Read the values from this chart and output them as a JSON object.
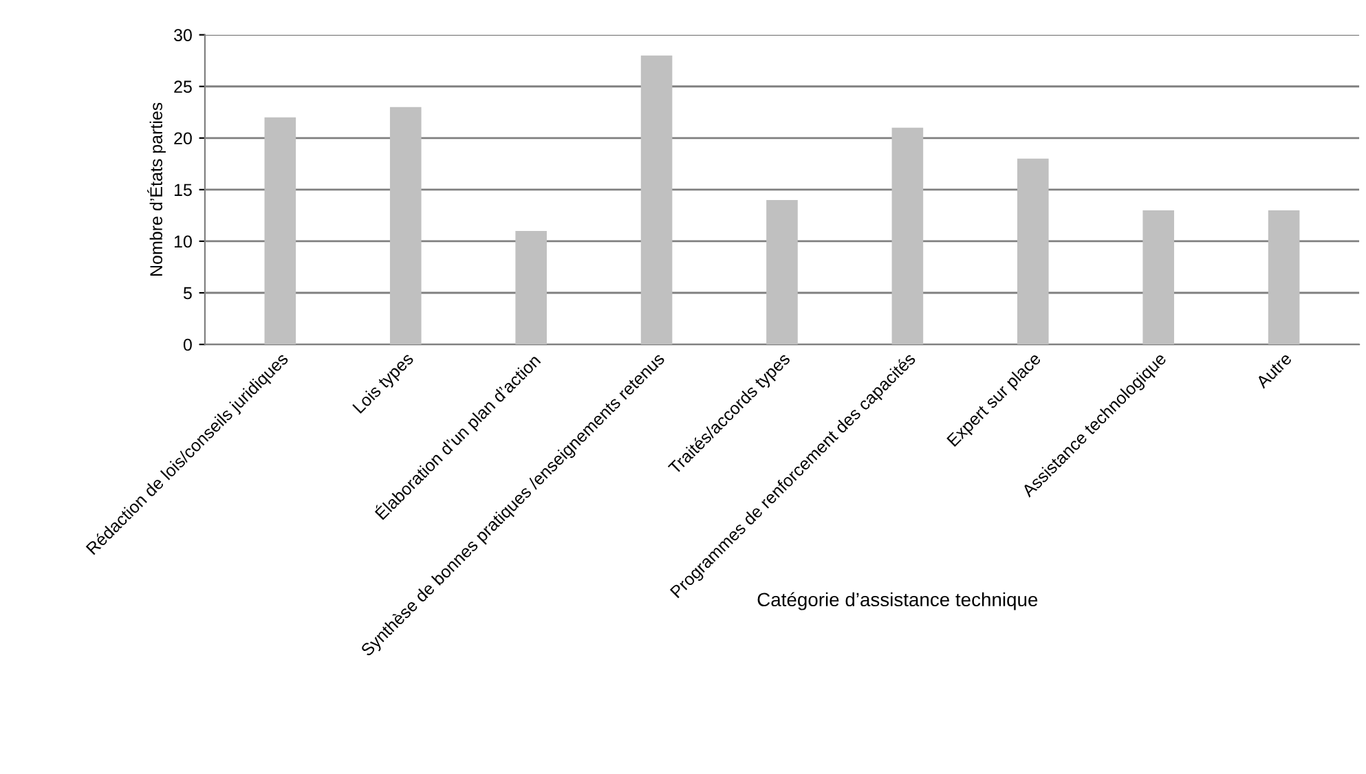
{
  "chart_data": {
    "type": "bar",
    "xlabel": "Catégorie d’assistance technique",
    "ylabel": "Nombre d’États parties",
    "categories": [
      "Rédaction de lois/conseils juridiques",
      "Lois types",
      "Élaboration d’un plan d’action",
      "Synthèse de bonnes pratiques /enseignements retenus",
      "Traités/accords types",
      "Programmes de renforcement des capacités",
      "Expert sur place",
      "Assistance technologique",
      "Autre"
    ],
    "values": [
      22,
      23,
      11,
      28,
      14,
      21,
      18,
      13,
      13
    ],
    "color": "#c0c0c0",
    "ylim": [
      0,
      30
    ],
    "yticks": [
      0,
      5,
      10,
      15,
      20,
      25,
      30
    ],
    "grid": "y",
    "legend": false
  }
}
